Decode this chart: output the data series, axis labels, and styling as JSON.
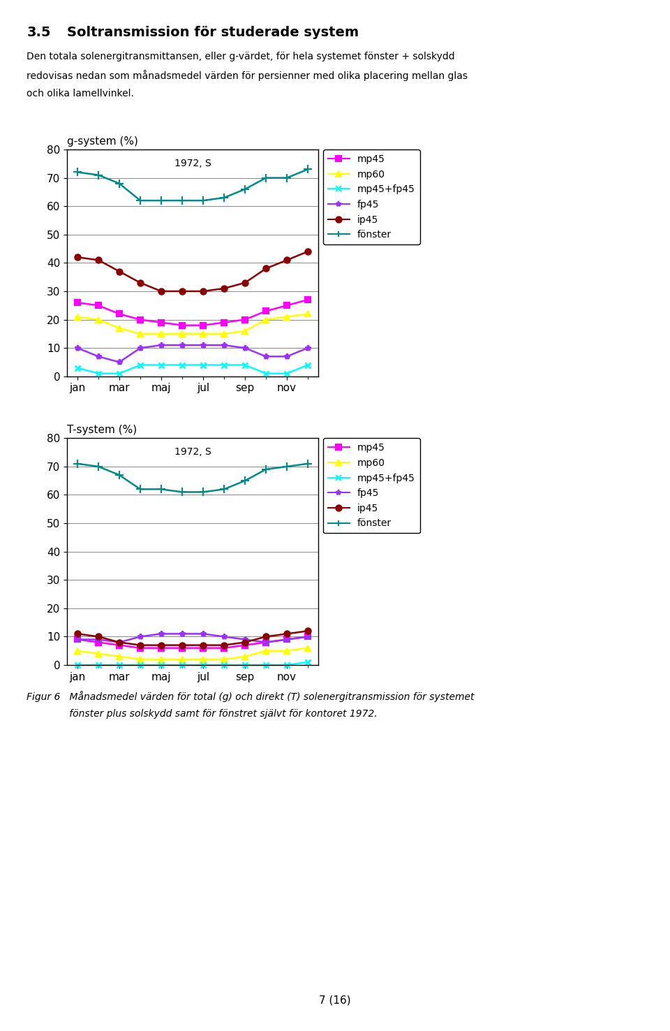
{
  "months_idx": [
    0,
    1,
    2,
    3,
    4,
    5,
    6,
    7,
    8,
    9,
    10,
    11
  ],
  "xtick_labels": [
    "jan",
    "mar",
    "maj",
    "jul",
    "sep",
    "nov"
  ],
  "xtick_positions": [
    0,
    2,
    4,
    6,
    8,
    10
  ],
  "g_system": {
    "title": "g-system (%)",
    "subtitle": "1972, S",
    "ylim": [
      0,
      80
    ],
    "yticks": [
      0,
      10,
      20,
      30,
      40,
      50,
      60,
      70,
      80
    ],
    "series": {
      "mp45": {
        "color": "#FF00FF",
        "marker": "s",
        "data": [
          26,
          25,
          22,
          20,
          19,
          18,
          18,
          19,
          20,
          23,
          25,
          27
        ]
      },
      "mp60": {
        "color": "#FFFF00",
        "marker": "^",
        "data": [
          21,
          20,
          17,
          15,
          15,
          15,
          15,
          15,
          16,
          20,
          21,
          22
        ]
      },
      "mp45+fp45": {
        "color": "#00FFFF",
        "marker": "x",
        "data": [
          3,
          1,
          1,
          4,
          4,
          4,
          4,
          4,
          4,
          1,
          1,
          4
        ]
      },
      "fp45": {
        "color": "#9B30FF",
        "marker": "*",
        "data": [
          10,
          7,
          5,
          10,
          11,
          11,
          11,
          11,
          10,
          7,
          7,
          10
        ]
      },
      "ip45": {
        "color": "#8B0000",
        "marker": "o",
        "data": [
          42,
          41,
          37,
          33,
          30,
          30,
          30,
          31,
          33,
          38,
          41,
          44
        ]
      },
      "fönster": {
        "color": "#008B8B",
        "marker": "+",
        "data": [
          72,
          71,
          68,
          62,
          62,
          62,
          62,
          63,
          66,
          70,
          70,
          73
        ]
      }
    }
  },
  "t_system": {
    "title": "T-system (%)",
    "subtitle": "1972, S",
    "ylim": [
      0,
      80
    ],
    "yticks": [
      0,
      10,
      20,
      30,
      40,
      50,
      60,
      70,
      80
    ],
    "series": {
      "mp45": {
        "color": "#FF00FF",
        "marker": "s",
        "data": [
          9,
          8,
          7,
          6,
          6,
          6,
          6,
          6,
          7,
          8,
          9,
          10
        ]
      },
      "mp60": {
        "color": "#FFFF00",
        "marker": "^",
        "data": [
          5,
          4,
          3,
          2,
          2,
          2,
          2,
          2,
          3,
          5,
          5,
          6
        ]
      },
      "mp45+fp45": {
        "color": "#00FFFF",
        "marker": "x",
        "data": [
          0,
          0,
          0,
          0,
          0,
          0,
          0,
          0,
          0,
          0,
          0,
          1
        ]
      },
      "fp45": {
        "color": "#9B30FF",
        "marker": "*",
        "data": [
          9,
          9,
          8,
          10,
          11,
          11,
          11,
          10,
          9,
          8,
          9,
          10
        ]
      },
      "ip45": {
        "color": "#8B0000",
        "marker": "o",
        "data": [
          11,
          10,
          8,
          7,
          7,
          7,
          7,
          7,
          8,
          10,
          11,
          12
        ]
      },
      "fönster": {
        "color": "#008B8B",
        "marker": "+",
        "data": [
          71,
          70,
          67,
          62,
          62,
          61,
          61,
          62,
          65,
          69,
          70,
          71
        ]
      }
    }
  },
  "header_number": "3.5",
  "header_title": "Soltransmission för studerade system",
  "header_body": "Den totala solenergitransmittansen, eller g-värdet, för hela systemet fönster + solskydd redovisas nedan som månadsmedel värden för persienner med olika placering mellan glas och olika lamellvinkel.",
  "footer_line1": "Figur 6   Månadsmedel värden för total (g) och direkt (T) solenergitransmission för systemet",
  "footer_line2": "              fönster plus solskydd samt för fönstret självt för kontoret 1972.",
  "page_number": "7 (16)",
  "legend_order": [
    "mp45",
    "mp60",
    "mp45+fp45",
    "fp45",
    "ip45",
    "fönster"
  ],
  "bg_color": "#FFFFFF"
}
